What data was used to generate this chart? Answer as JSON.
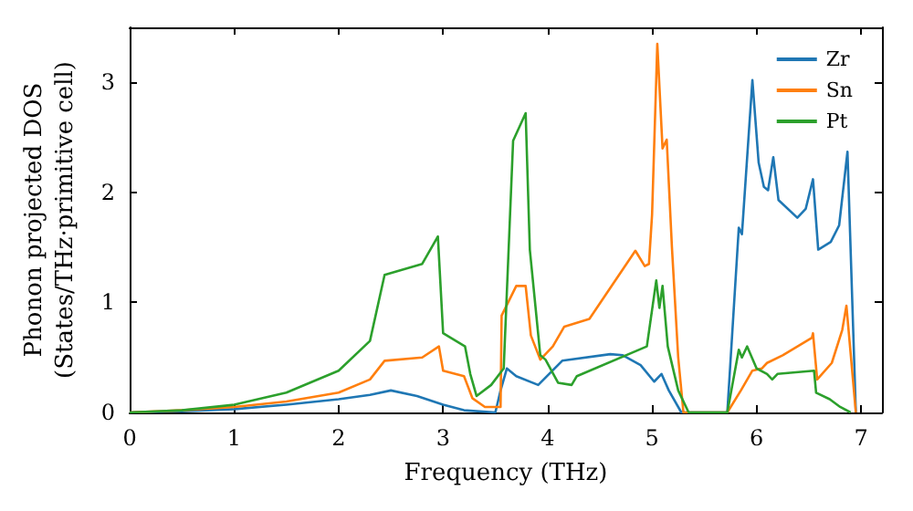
{
  "chart_data": {
    "type": "line",
    "xlabel": "Frequency (THz)",
    "ylabel": "Phonon projected DOS\n(States/THz·primitive cell)",
    "xlim": [
      0,
      7.2
    ],
    "ylim": [
      0,
      3.5
    ],
    "xticks": [
      0,
      1,
      2,
      3,
      4,
      5,
      6,
      7
    ],
    "yticks": [
      0,
      1,
      2,
      3
    ],
    "grid": false,
    "legend": "top right",
    "marker": "none",
    "line_style": "solid",
    "series": [
      {
        "name": "Zr",
        "color": "#1f77b4",
        "x": [
          0,
          0.5,
          1,
          1.5,
          2,
          2.3,
          2.5,
          2.75,
          3,
          3.2,
          3.5,
          3.55,
          3.61,
          3.7,
          3.91,
          4.14,
          4.6,
          4.72,
          4.89,
          5.02,
          5.09,
          5.16,
          5.28,
          5.72,
          5.83,
          5.86,
          5.96,
          6.02,
          6.07,
          6.11,
          6.16,
          6.21,
          6.39,
          6.47,
          6.54,
          6.59,
          6.71,
          6.79,
          6.87,
          6.95
        ],
        "values": [
          0,
          0.01,
          0.03,
          0.07,
          0.12,
          0.16,
          0.2,
          0.15,
          0.07,
          0.02,
          0,
          0.2,
          0.4,
          0.33,
          0.25,
          0.47,
          0.53,
          0.52,
          0.43,
          0.28,
          0.35,
          0.2,
          0,
          0,
          1.68,
          1.62,
          3.02,
          2.27,
          2.05,
          2.02,
          2.32,
          1.93,
          1.77,
          1.85,
          2.12,
          1.48,
          1.55,
          1.7,
          2.37,
          0
        ]
      },
      {
        "name": "Sn",
        "color": "#ff7f0e",
        "x": [
          0,
          0.5,
          1,
          1.5,
          2,
          2.3,
          2.44,
          2.8,
          2.96,
          3,
          3.2,
          3.28,
          3.4,
          3.55,
          3.56,
          3.7,
          3.79,
          3.84,
          3.93,
          4.05,
          4.16,
          4.4,
          4.84,
          4.93,
          4.97,
          5.0,
          5.05,
          5.1,
          5.14,
          5.19,
          5.25,
          5.3,
          5.72,
          5.85,
          5.96,
          6.05,
          6.1,
          6.25,
          6.53,
          6.54,
          6.58,
          6.72,
          6.82,
          6.86,
          6.95
        ],
        "values": [
          0,
          0.02,
          0.05,
          0.1,
          0.18,
          0.3,
          0.47,
          0.5,
          0.6,
          0.38,
          0.33,
          0.13,
          0.05,
          0.05,
          0.88,
          1.15,
          1.15,
          0.7,
          0.48,
          0.6,
          0.78,
          0.85,
          1.47,
          1.33,
          1.35,
          1.8,
          3.35,
          2.4,
          2.48,
          1.5,
          0.5,
          0,
          0,
          0.2,
          0.38,
          0.4,
          0.45,
          0.52,
          0.68,
          0.72,
          0.3,
          0.45,
          0.75,
          0.97,
          0
        ]
      },
      {
        "name": "Pt",
        "color": "#2ca02c",
        "x": [
          0,
          0.5,
          1,
          1.5,
          2,
          2.3,
          2.44,
          2.8,
          2.95,
          3,
          3.21,
          3.26,
          3.32,
          3.46,
          3.58,
          3.67,
          3.79,
          3.83,
          3.93,
          3.98,
          4.1,
          4.23,
          4.28,
          4.95,
          5.04,
          5.07,
          5.1,
          5.15,
          5.25,
          5.35,
          5.72,
          5.83,
          5.86,
          5.91,
          6,
          6.1,
          6.15,
          6.2,
          6.55,
          6.57,
          6.7,
          6.8,
          6.9
        ],
        "values": [
          0,
          0.02,
          0.07,
          0.18,
          0.38,
          0.65,
          1.25,
          1.35,
          1.6,
          0.72,
          0.6,
          0.35,
          0.15,
          0.25,
          0.4,
          2.47,
          2.72,
          1.48,
          0.52,
          0.48,
          0.27,
          0.25,
          0.33,
          0.6,
          1.2,
          0.95,
          1.15,
          0.6,
          0.2,
          0,
          0,
          0.57,
          0.5,
          0.6,
          0.4,
          0.35,
          0.3,
          0.35,
          0.38,
          0.18,
          0.12,
          0.05,
          0
        ]
      }
    ]
  }
}
